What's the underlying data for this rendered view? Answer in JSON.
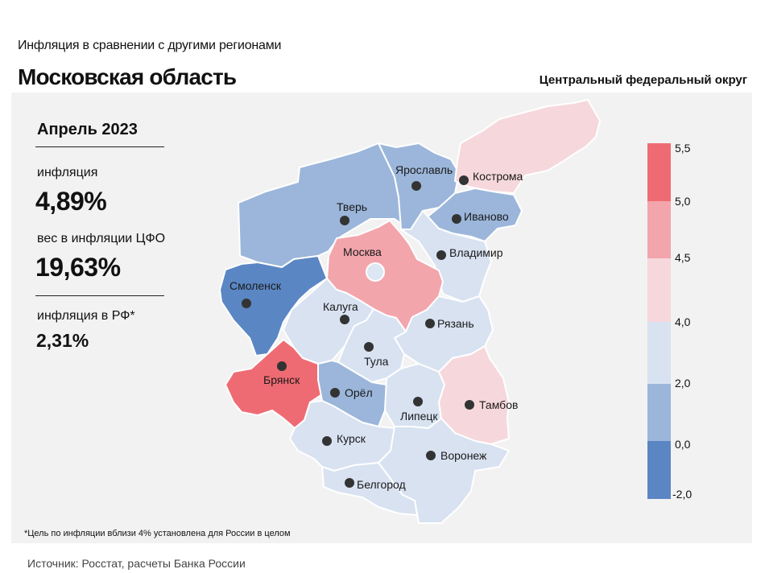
{
  "header": {
    "subtitle": "Инфляция  в сравнении  с другими регионами",
    "region_title": "Московская область",
    "district_title": "Центральный федеральный округ"
  },
  "stats": {
    "period": "Апрель 2023",
    "inflation_label": "инфляция",
    "inflation_value": "4,89%",
    "weight_label": "вес в инфляции  ЦФО",
    "weight_value": "19,63%",
    "rf_label": "инфляция  в РФ*",
    "rf_value": "2,31%"
  },
  "footnote": "*Цель по инфляции вблизи 4% установлена для России в целом",
  "source": "Источник: Росстат, расчеты Банка России",
  "colors": {
    "panel": "#f2f2f2",
    "class_neg": "#5b86c4",
    "class_0_2": "#9bb6da",
    "class_2_4": "#d8e2f1",
    "class_4_4_5": "#f6d8dc",
    "class_4_5_5": "#f3a5ac",
    "class_5_5_5": "#ef6b73"
  },
  "legend": {
    "ticks": [
      "5,5",
      "5,0",
      "4,5",
      "4,0",
      "2,0",
      "0,0",
      "-2,0"
    ]
  },
  "map": {
    "regions": [
      {
        "name": "Тверь",
        "class": "0-2"
      },
      {
        "name": "Ярославль",
        "class": "0-2"
      },
      {
        "name": "Кострома",
        "class": "4-4.5"
      },
      {
        "name": "Иваново",
        "class": "0-2"
      },
      {
        "name": "Владимир",
        "class": "2-4"
      },
      {
        "name": "Москва",
        "class": "4.5-5"
      },
      {
        "name": "Смоленск",
        "class": "-2-0"
      },
      {
        "name": "Калуга",
        "class": "2-4"
      },
      {
        "name": "Рязань",
        "class": "2-4"
      },
      {
        "name": "Тула",
        "class": "2-4"
      },
      {
        "name": "Брянск",
        "class": "5-5.5"
      },
      {
        "name": "Орёл",
        "class": "0-2"
      },
      {
        "name": "Липецк",
        "class": "2-4"
      },
      {
        "name": "Тамбов",
        "class": "4-4.5"
      },
      {
        "name": "Курск",
        "class": "2-4"
      },
      {
        "name": "Воронеж",
        "class": "2-4"
      },
      {
        "name": "Белгород",
        "class": "2-4"
      }
    ]
  }
}
